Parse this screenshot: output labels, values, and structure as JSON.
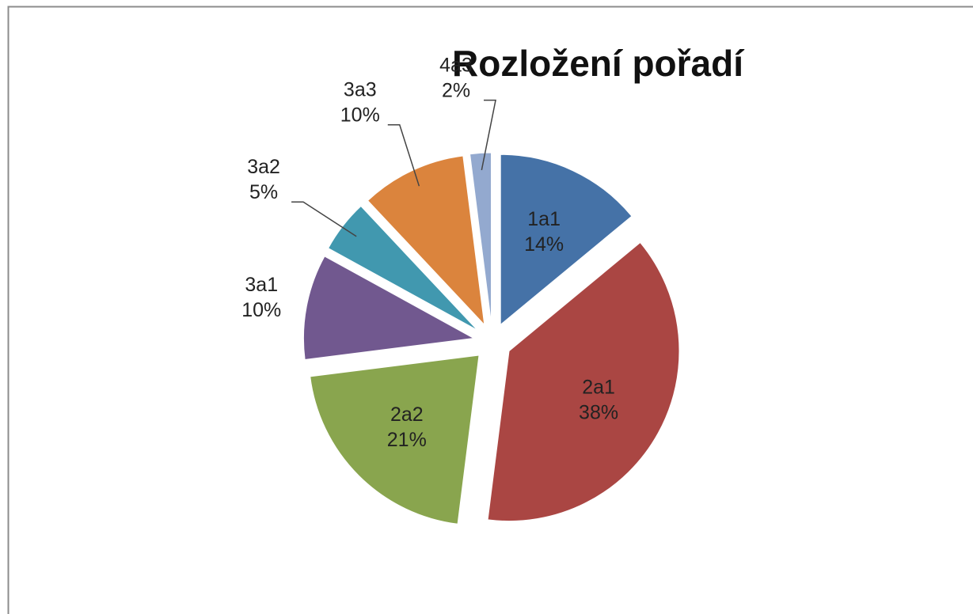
{
  "chart_data": {
    "type": "pie",
    "title": "Rozložení pořadí",
    "categories": [
      "1a1",
      "2a1",
      "2a2",
      "3a1",
      "3a2",
      "3a3",
      "4a3"
    ],
    "values": [
      14,
      38,
      21,
      10,
      5,
      10,
      2
    ],
    "value_labels": [
      "14%",
      "38%",
      "21%",
      "10%",
      "5%",
      "10%",
      "2%"
    ],
    "colors": [
      "#4572a7",
      "#aa4643",
      "#89a54e",
      "#71588f",
      "#4198af",
      "#db843d",
      "#93a9cf"
    ]
  }
}
